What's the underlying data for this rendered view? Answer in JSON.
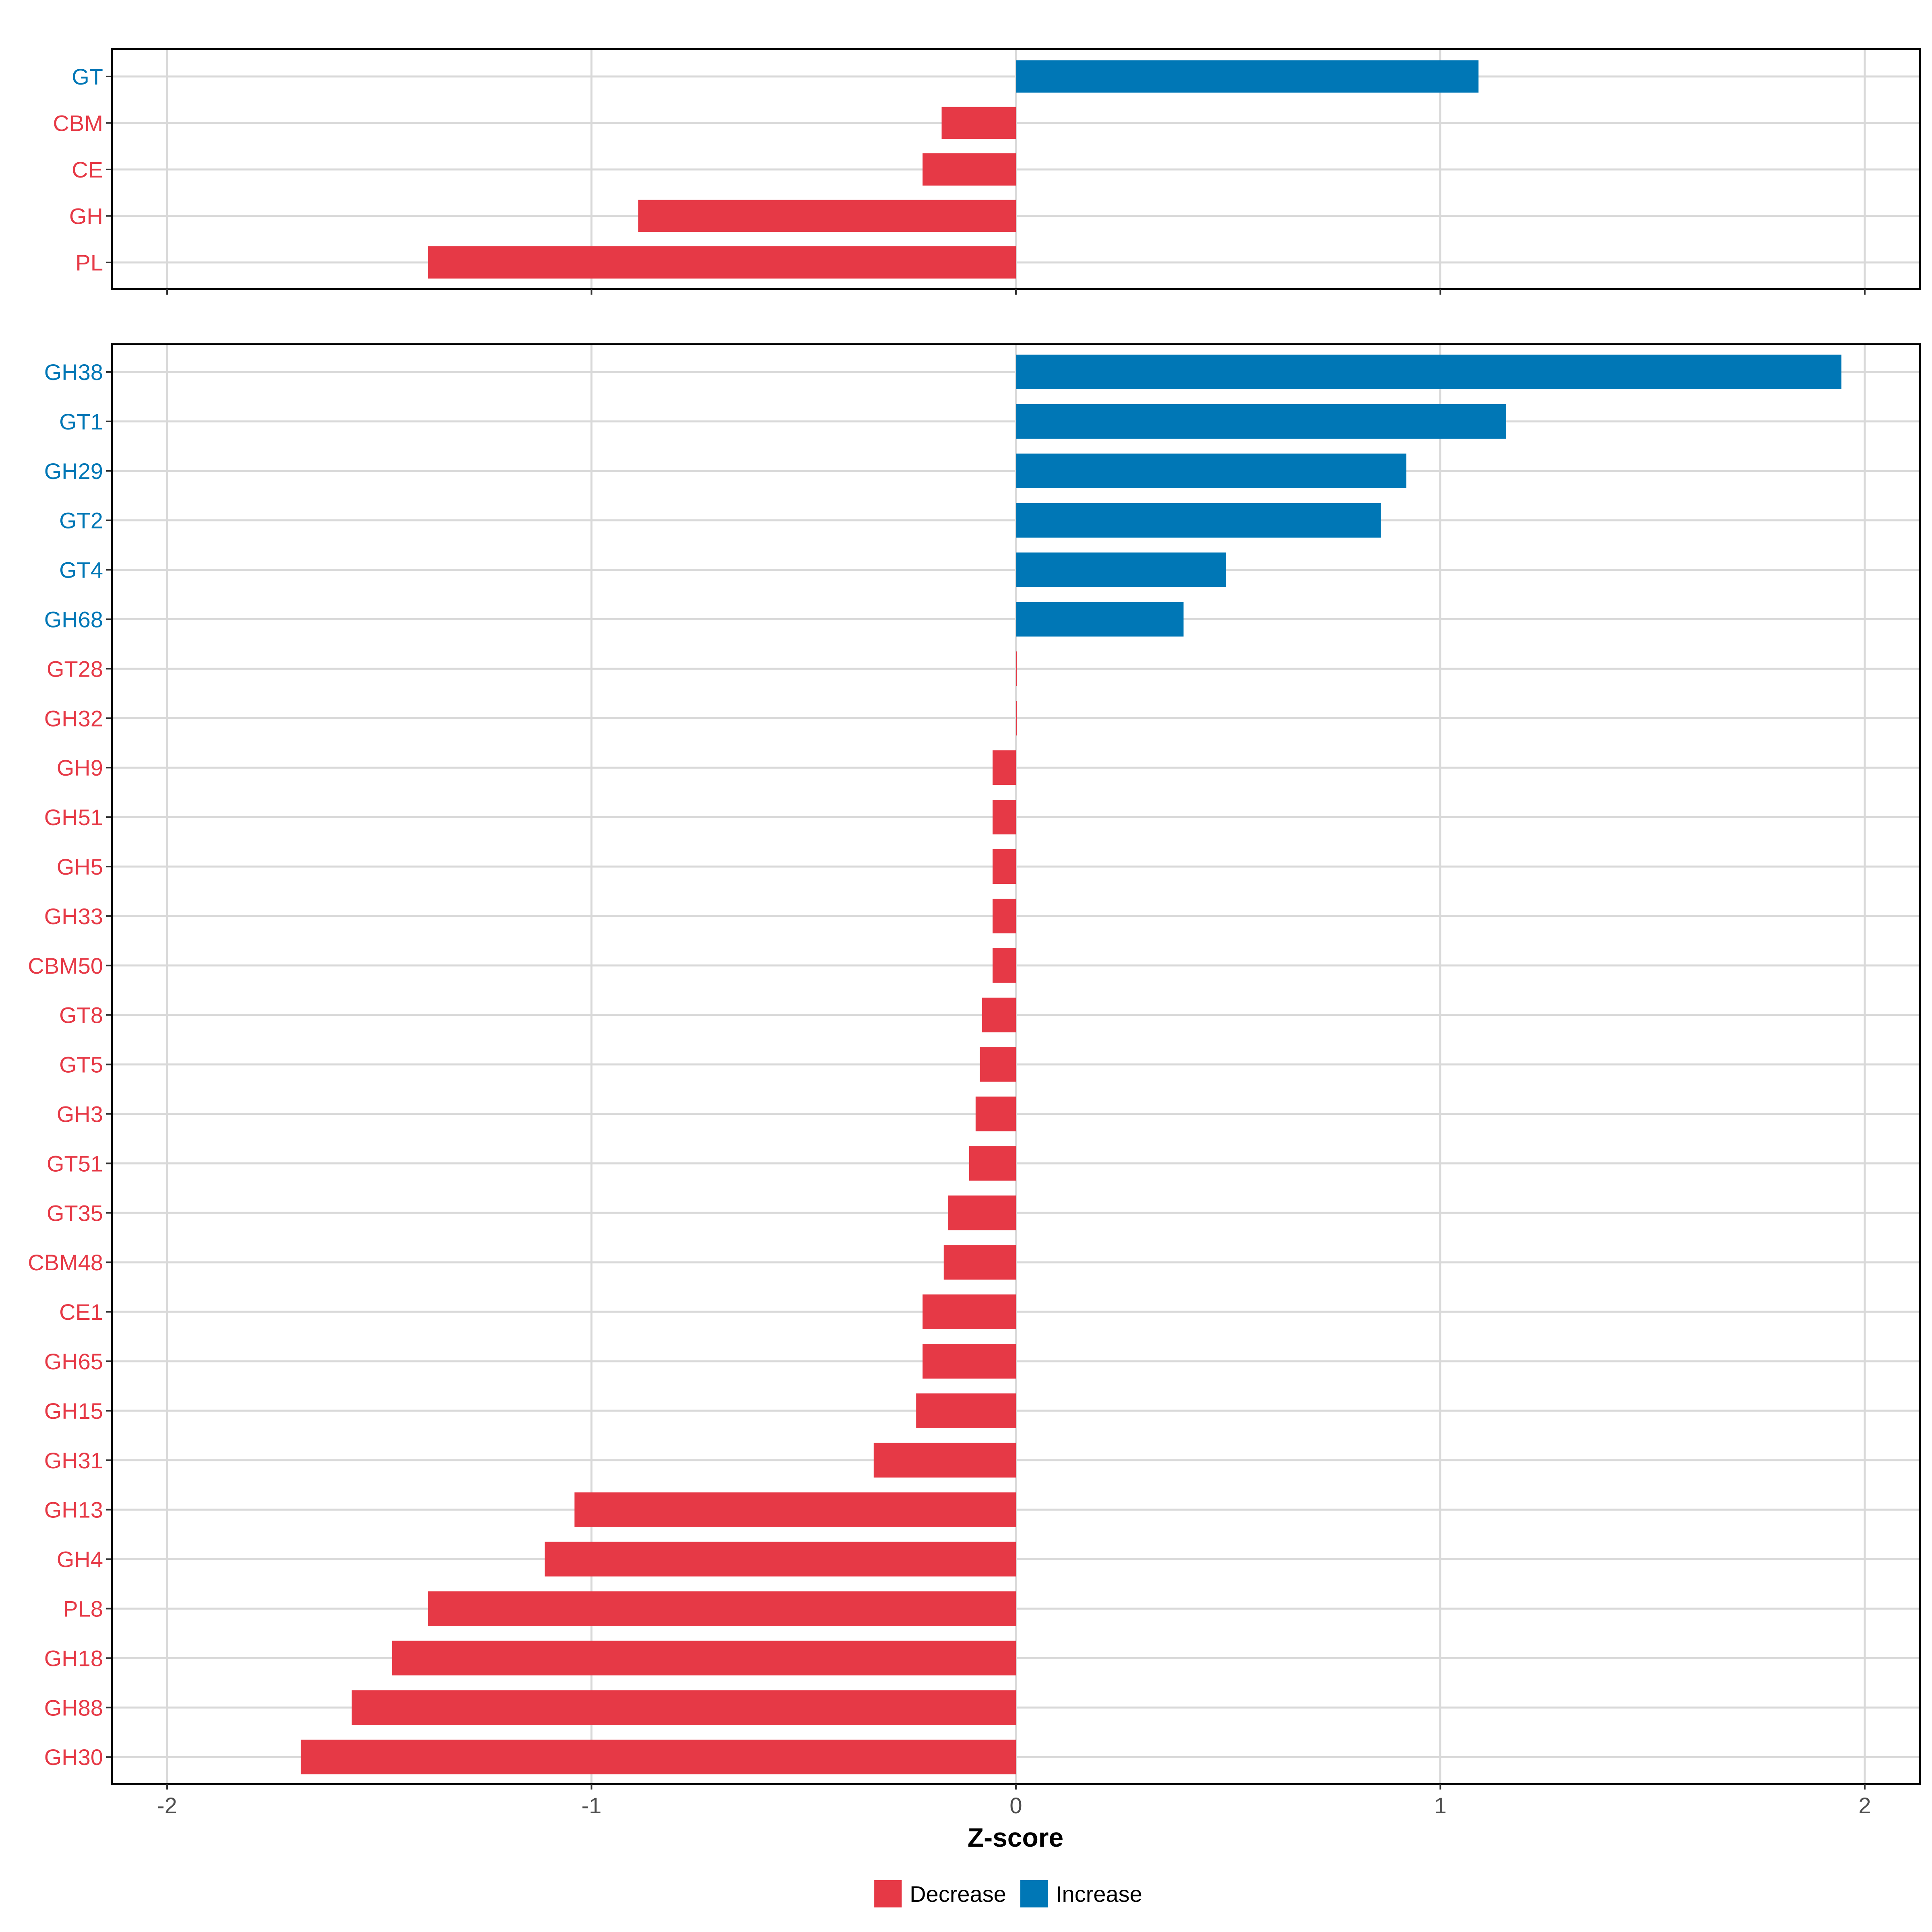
{
  "chart_data": [
    {
      "type": "bar",
      "orientation": "horizontal",
      "categories": [
        "GT",
        "CBM",
        "CE",
        "GH",
        "PL"
      ],
      "values": [
        1.09,
        -0.175,
        -0.22,
        -0.89,
        -1.385
      ],
      "directions": [
        "Increase",
        "Decrease",
        "Decrease",
        "Decrease",
        "Decrease"
      ],
      "xlim": [
        -2.13,
        2.13
      ],
      "xticks": [
        -2,
        -1,
        0,
        1,
        2
      ],
      "grid": true,
      "xlabel": ""
    },
    {
      "type": "bar",
      "orientation": "horizontal",
      "categories": [
        "GH38",
        "GT1",
        "GH29",
        "GT2",
        "GT4",
        "GH68",
        "GT28",
        "GH32",
        "GH9",
        "GH51",
        "GH5",
        "GH33",
        "CBM50",
        "GT8",
        "GT5",
        "GH3",
        "GT51",
        "GT35",
        "CBM48",
        "CE1",
        "GH65",
        "GH15",
        "GH31",
        "GH13",
        "GH4",
        "PL8",
        "GH18",
        "GH88",
        "GH30"
      ],
      "values": [
        1.945,
        1.155,
        0.92,
        0.86,
        0.495,
        0.395,
        0.0,
        0.0,
        -0.055,
        -0.055,
        -0.055,
        -0.055,
        -0.055,
        -0.08,
        -0.085,
        -0.095,
        -0.11,
        -0.16,
        -0.17,
        -0.22,
        -0.22,
        -0.235,
        -0.335,
        -1.04,
        -1.11,
        -1.385,
        -1.47,
        -1.565,
        -1.685
      ],
      "directions": [
        "Increase",
        "Increase",
        "Increase",
        "Increase",
        "Increase",
        "Increase",
        "Decrease",
        "Decrease",
        "Decrease",
        "Decrease",
        "Decrease",
        "Decrease",
        "Decrease",
        "Decrease",
        "Decrease",
        "Decrease",
        "Decrease",
        "Decrease",
        "Decrease",
        "Decrease",
        "Decrease",
        "Decrease",
        "Decrease",
        "Decrease",
        "Decrease",
        "Decrease",
        "Decrease",
        "Decrease",
        "Decrease"
      ],
      "xlim": [
        -2.13,
        2.13
      ],
      "xticks": [
        -2,
        -1,
        0,
        1,
        2
      ],
      "xticklabels": [
        "-2",
        "-1",
        "0",
        "1",
        "2"
      ],
      "grid": true,
      "xlabel": "Z-score"
    }
  ],
  "legend": {
    "placement": "bottom",
    "items": [
      {
        "label": "Decrease",
        "color": "#E63946"
      },
      {
        "label": "Increase",
        "color": "#0077B6"
      }
    ]
  },
  "colors": {
    "Decrease": "#E63946",
    "Increase": "#0077B6",
    "grid": "#D9D9D9"
  }
}
